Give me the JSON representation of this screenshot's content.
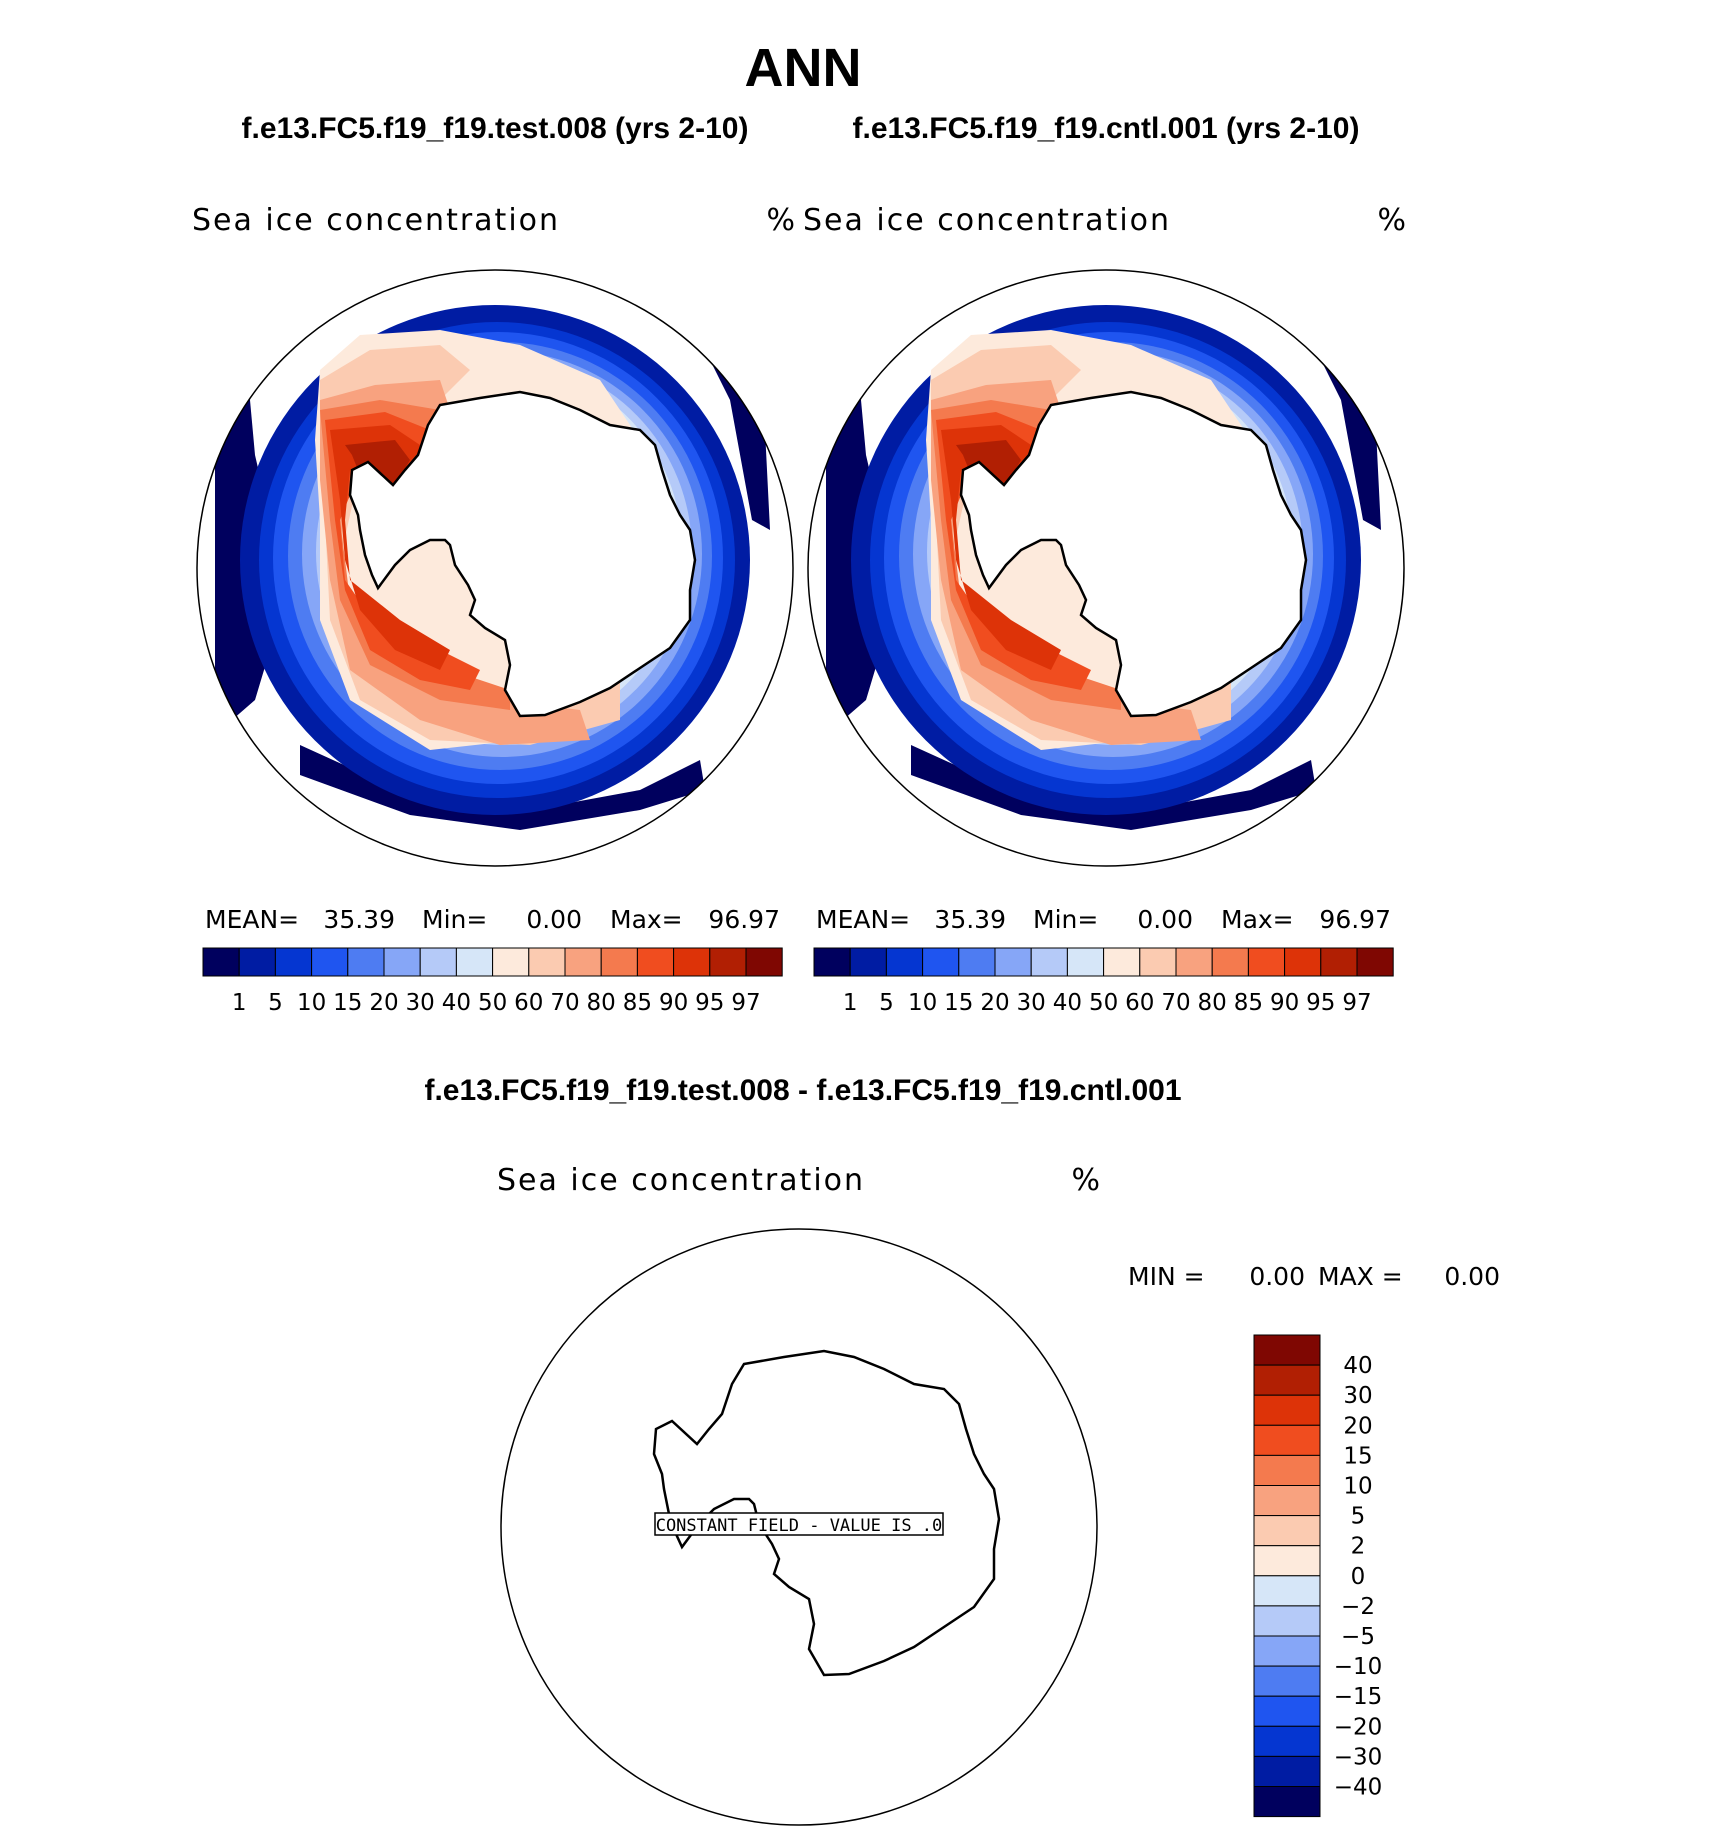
{
  "title": "ANN",
  "subtitles": {
    "left": "f.e13.FC5.f19_f19.test.008 (yrs 2-10)",
    "right": "f.e13.FC5.f19_f19.cntl.001 (yrs 2-10)",
    "diff": "f.e13.FC5.f19_f19.test.008 - f.e13.FC5.f19_f19.cntl.001"
  },
  "panels": [
    {
      "variable": "Sea ice concentration",
      "units": "%",
      "stats": {
        "mean_label": "MEAN=",
        "mean": "35.39",
        "min_label": "Min=",
        "min": "0.00",
        "max_label": "Max=",
        "max": "96.97"
      }
    },
    {
      "variable": "Sea ice concentration",
      "units": "%",
      "stats": {
        "mean_label": "MEAN=",
        "mean": "35.39",
        "min_label": "Min=",
        "min": "0.00",
        "max_label": "Max=",
        "max": "96.97"
      }
    }
  ],
  "diff_panel": {
    "variable": "Sea ice concentration",
    "units": "%",
    "min_label": "MIN =",
    "min": "0.00",
    "max_label": "MAX =",
    "max": "0.00",
    "constant_label": "CONSTANT FIELD - VALUE IS .0"
  },
  "colorbar": {
    "colors": [
      "#00005e",
      "#001ca3",
      "#0536d1",
      "#1f55f0",
      "#4e7cf2",
      "#86a6f7",
      "#b5caf8",
      "#d6e6f8",
      "#fdeadc",
      "#fbcbb1",
      "#f8a27f",
      "#f47a4e",
      "#f04d1f",
      "#dd3308",
      "#b11f03",
      "#7f0702"
    ],
    "labels": [
      "1",
      "5",
      "10",
      "15",
      "20",
      "30",
      "40",
      "50",
      "60",
      "70",
      "80",
      "85",
      "90",
      "95",
      "97"
    ]
  },
  "diff_colorbar": {
    "colors": [
      "#7f0702",
      "#b11f03",
      "#dd3308",
      "#f04d1f",
      "#f47a4e",
      "#f8a27f",
      "#fbcbb1",
      "#fdeadc",
      "#d6e6f8",
      "#b5caf8",
      "#86a6f7",
      "#4e7cf2",
      "#1f55f0",
      "#0536d1",
      "#001ca3",
      "#00005e"
    ],
    "labels": [
      "40",
      "30",
      "20",
      "15",
      "10",
      "5",
      "2",
      "0",
      "−2",
      "−5",
      "−10",
      "−15",
      "−20",
      "−30",
      "−40"
    ]
  }
}
